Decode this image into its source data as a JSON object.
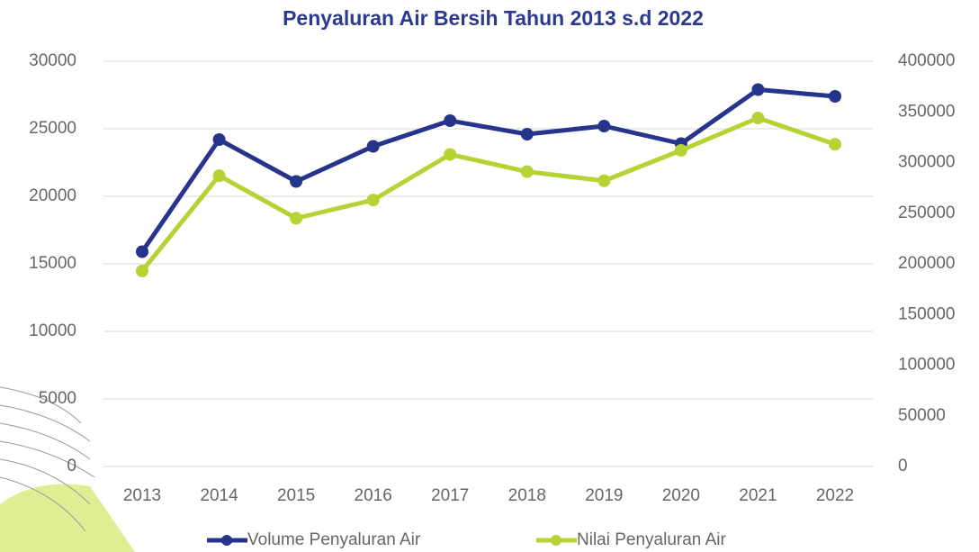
{
  "chart_data": {
    "type": "line",
    "title": "Penyaluran Air Bersih Tahun 2013 s.d 2022",
    "categories": [
      "2013",
      "2014",
      "2015",
      "2016",
      "2017",
      "2018",
      "2019",
      "2020",
      "2021",
      "2022"
    ],
    "series": [
      {
        "name": "Volume Penyaluran Air",
        "color": "#27348b",
        "values": [
          15900,
          24200,
          21100,
          23700,
          25600,
          24600,
          25200,
          23900,
          27900,
          27400
        ]
      },
      {
        "name": "Nilai Penyaluran Air",
        "color": "#b5d334",
        "axis": "y2",
        "values": [
          193000,
          287000,
          245000,
          263000,
          308000,
          291000,
          282000,
          312000,
          344000,
          318000
        ]
      }
    ],
    "ylim": [
      0,
      30000
    ],
    "yticks": [
      0,
      5000,
      10000,
      15000,
      20000,
      25000,
      30000
    ],
    "y2lim": [
      0,
      400000
    ],
    "y2ticks": [
      0,
      50000,
      100000,
      150000,
      200000,
      250000,
      300000,
      350000,
      400000
    ],
    "grid": true
  }
}
